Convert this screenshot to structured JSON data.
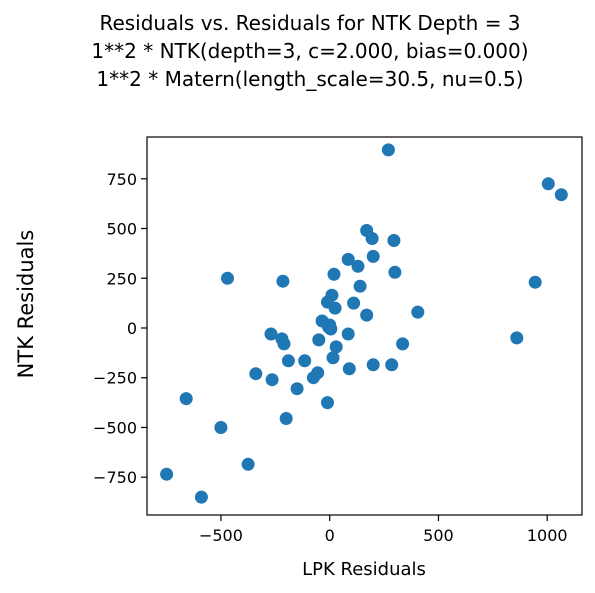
{
  "chart_data": {
    "type": "scatter",
    "title_lines": [
      "Residuals vs. Residuals for NTK Depth = 3",
      "1**2 * NTK(depth=3, c=2.000, bias=0.000)",
      "1**2 * Matern(length_scale=30.5, nu=0.5)"
    ],
    "xlabel": "LPK Residuals",
    "ylabel": "NTK Residuals",
    "xlim": [
      -840,
      1160
    ],
    "ylim": [
      -940,
      960
    ],
    "xticks": [
      {
        "value": -500,
        "label": "−500"
      },
      {
        "value": 0,
        "label": "0"
      },
      {
        "value": 500,
        "label": "500"
      },
      {
        "value": 1000,
        "label": "1000"
      }
    ],
    "yticks": [
      {
        "value": -750,
        "label": "−750"
      },
      {
        "value": -500,
        "label": "−500"
      },
      {
        "value": -250,
        "label": "−250"
      },
      {
        "value": 0,
        "label": "0"
      },
      {
        "value": 250,
        "label": "250"
      },
      {
        "value": 500,
        "label": "500"
      },
      {
        "value": 750,
        "label": "750"
      }
    ],
    "grid": false,
    "marker_color": "#1f77b4",
    "points": [
      {
        "x": 270,
        "y": 895
      },
      {
        "x": 1005,
        "y": 725
      },
      {
        "x": 1065,
        "y": 670
      },
      {
        "x": 170,
        "y": 490
      },
      {
        "x": 195,
        "y": 450
      },
      {
        "x": 295,
        "y": 440
      },
      {
        "x": 200,
        "y": 360
      },
      {
        "x": 85,
        "y": 345
      },
      {
        "x": 130,
        "y": 310
      },
      {
        "x": 20,
        "y": 270
      },
      {
        "x": 300,
        "y": 280
      },
      {
        "x": -470,
        "y": 250
      },
      {
        "x": -215,
        "y": 235
      },
      {
        "x": 945,
        "y": 230
      },
      {
        "x": 140,
        "y": 210
      },
      {
        "x": 10,
        "y": 165
      },
      {
        "x": -10,
        "y": 130
      },
      {
        "x": 110,
        "y": 125
      },
      {
        "x": 25,
        "y": 100
      },
      {
        "x": 405,
        "y": 80
      },
      {
        "x": 170,
        "y": 65
      },
      {
        "x": -35,
        "y": 35
      },
      {
        "x": 0,
        "y": 15
      },
      {
        "x": -5,
        "y": 5
      },
      {
        "x": 5,
        "y": -5
      },
      {
        "x": -270,
        "y": -30
      },
      {
        "x": 85,
        "y": -30
      },
      {
        "x": -220,
        "y": -55
      },
      {
        "x": -50,
        "y": -60
      },
      {
        "x": 860,
        "y": -50
      },
      {
        "x": -210,
        "y": -80
      },
      {
        "x": 335,
        "y": -80
      },
      {
        "x": 30,
        "y": -95
      },
      {
        "x": 15,
        "y": -150
      },
      {
        "x": -190,
        "y": -165
      },
      {
        "x": -115,
        "y": -165
      },
      {
        "x": 200,
        "y": -185
      },
      {
        "x": 285,
        "y": -185
      },
      {
        "x": 90,
        "y": -205
      },
      {
        "x": -55,
        "y": -225
      },
      {
        "x": -340,
        "y": -230
      },
      {
        "x": -75,
        "y": -250
      },
      {
        "x": -265,
        "y": -260
      },
      {
        "x": -150,
        "y": -305
      },
      {
        "x": -660,
        "y": -355
      },
      {
        "x": -10,
        "y": -375
      },
      {
        "x": -200,
        "y": -455
      },
      {
        "x": -500,
        "y": -500
      },
      {
        "x": -375,
        "y": -685
      },
      {
        "x": -750,
        "y": -735
      },
      {
        "x": -590,
        "y": -850
      }
    ]
  }
}
